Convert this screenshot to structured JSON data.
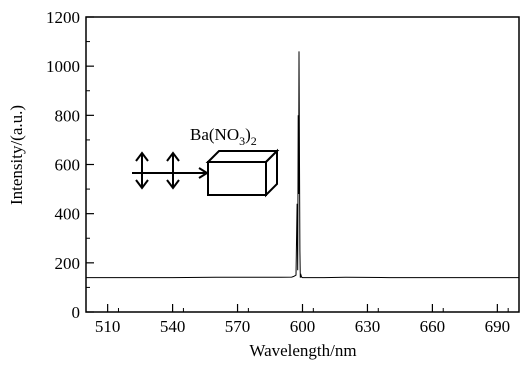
{
  "chart_data": {
    "type": "line",
    "title": "",
    "xlabel": "Wavelength/nm",
    "ylabel": "Intensity/(a.u.)",
    "xlim": [
      500,
      700
    ],
    "ylim": [
      0,
      1200
    ],
    "xticks": [
      510,
      540,
      570,
      600,
      630,
      660,
      690
    ],
    "yticks": [
      0,
      200,
      400,
      600,
      800,
      1000,
      1200
    ],
    "grid": false,
    "series": [
      {
        "color": "#000000",
        "x": [
          500,
          520,
          540,
          560,
          580,
          590,
          595,
          596,
          597,
          597.5,
          597.8,
          598.0,
          598.2,
          598.4,
          598.6,
          598.8,
          599.0,
          599.3,
          599.6,
          600,
          602,
          610,
          620,
          640,
          660,
          680,
          700
        ],
        "y": [
          140,
          140,
          140,
          141,
          141,
          141,
          142,
          145,
          150,
          440,
          170,
          800,
          480,
          1060,
          600,
          250,
          140,
          150,
          142,
          140,
          140,
          140,
          141,
          140,
          140,
          140,
          140
        ]
      }
    ],
    "annotation": {
      "label_base": "Ba(NO",
      "label_sub1": "3",
      "label_mid": ")",
      "label_sub2": "2"
    }
  }
}
